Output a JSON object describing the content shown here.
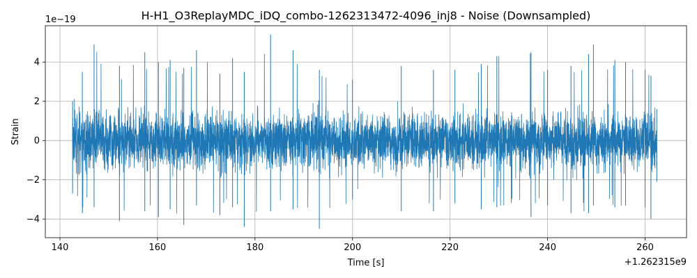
{
  "chart_data": {
    "type": "line",
    "title": "H-H1_O3ReplayMDC_iDQ_combo-1262313472-4096_inj8 - Noise (Downsampled)",
    "xlabel": "Time [s]",
    "ylabel": "Strain",
    "x_offset_label": "+1.262315e9",
    "y_scale_label": "1e−19",
    "xlim": [
      137,
      268.5
    ],
    "ylim": [
      -4.95,
      5.85
    ],
    "x_ticks": [
      140,
      160,
      180,
      200,
      220,
      240,
      260
    ],
    "x_tick_labels": [
      "140",
      "160",
      "180",
      "200",
      "220",
      "240",
      "260"
    ],
    "y_ticks": [
      -4,
      -2,
      0,
      2,
      4
    ],
    "y_tick_labels": [
      "−4",
      "−2",
      "0",
      "2",
      "4"
    ],
    "grid": true,
    "line_color": "#1f77b4",
    "series": [
      {
        "x_range": [
          142.6,
          262.4
        ],
        "envelope_points": [
          {
            "x": 142.6,
            "min": -2.7,
            "max": 2.0
          },
          {
            "x": 144.6,
            "min": -3.7,
            "max": 3.5
          },
          {
            "x": 147.0,
            "min": -3.4,
            "max": 4.9
          },
          {
            "x": 152.2,
            "min": -4.1,
            "max": 3.8
          },
          {
            "x": 157.4,
            "min": -3.6,
            "max": 4.5
          },
          {
            "x": 160.2,
            "min": -3.9,
            "max": 4.0
          },
          {
            "x": 162.6,
            "min": -3.5,
            "max": 4.1
          },
          {
            "x": 165.4,
            "min": -4.3,
            "max": 3.7
          },
          {
            "x": 168.0,
            "min": -3.3,
            "max": 4.6
          },
          {
            "x": 172.8,
            "min": -3.8,
            "max": 3.4
          },
          {
            "x": 175.4,
            "min": -3.4,
            "max": 4.2
          },
          {
            "x": 177.8,
            "min": -4.4,
            "max": 3.5
          },
          {
            "x": 183.2,
            "min": -3.6,
            "max": 5.4
          },
          {
            "x": 187.8,
            "min": -3.5,
            "max": 4.6
          },
          {
            "x": 193.2,
            "min": -4.5,
            "max": 3.6
          },
          {
            "x": 200.0,
            "min": -3.0,
            "max": 3.1
          },
          {
            "x": 210.0,
            "min": -3.6,
            "max": 3.8
          },
          {
            "x": 216.6,
            "min": -3.6,
            "max": 3.6
          },
          {
            "x": 221.0,
            "min": -3.2,
            "max": 3.6
          },
          {
            "x": 226.4,
            "min": -3.5,
            "max": 3.9
          },
          {
            "x": 229.6,
            "min": -3.4,
            "max": 4.3
          },
          {
            "x": 236.6,
            "min": -3.9,
            "max": 4.5
          },
          {
            "x": 240.0,
            "min": -3.3,
            "max": 3.6
          },
          {
            "x": 244.8,
            "min": -3.7,
            "max": 3.8
          },
          {
            "x": 248.4,
            "min": -3.7,
            "max": 4.4
          },
          {
            "x": 249.4,
            "min": -3.3,
            "max": 4.9
          },
          {
            "x": 253.8,
            "min": -3.4,
            "max": 4.1
          },
          {
            "x": 256.0,
            "min": -3.3,
            "max": 4.0
          },
          {
            "x": 260.0,
            "min": -3.4,
            "max": 3.6
          },
          {
            "x": 261.2,
            "min": -4.0,
            "max": 3.3
          },
          {
            "x": 262.4,
            "min": -2.1,
            "max": 1.6
          }
        ]
      }
    ]
  }
}
